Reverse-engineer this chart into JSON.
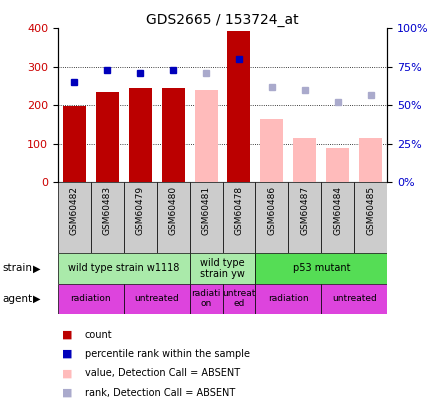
{
  "title": "GDS2665 / 153724_at",
  "samples": [
    "GSM60482",
    "GSM60483",
    "GSM60479",
    "GSM60480",
    "GSM60481",
    "GSM60478",
    "GSM60486",
    "GSM60487",
    "GSM60484",
    "GSM60485"
  ],
  "bar_values": [
    197,
    235,
    244,
    246,
    null,
    392,
    null,
    null,
    null,
    null
  ],
  "bar_color_present": "#bb0000",
  "bar_values_absent": [
    null,
    null,
    null,
    null,
    240,
    null,
    165,
    115,
    90,
    115
  ],
  "bar_color_absent": "#ffbbbb",
  "rank_present": [
    65,
    73,
    71,
    73,
    null,
    80,
    null,
    null,
    null,
    null
  ],
  "rank_color_present": "#0000bb",
  "rank_absent": [
    null,
    null,
    null,
    null,
    71,
    null,
    62,
    60,
    52,
    57
  ],
  "rank_color_absent": "#aaaacc",
  "ylim_left": [
    0,
    400
  ],
  "ylim_right": [
    0,
    100
  ],
  "yticks_left": [
    0,
    100,
    200,
    300,
    400
  ],
  "yticks_right": [
    0,
    25,
    50,
    75,
    100
  ],
  "ytick_labels_right": [
    "0%",
    "25%",
    "50%",
    "75%",
    "100%"
  ],
  "strain_groups": [
    {
      "label": "wild type strain w1118",
      "start": 0,
      "end": 4,
      "color": "#aaeaaa"
    },
    {
      "label": "wild type\nstrain yw",
      "start": 4,
      "end": 6,
      "color": "#aaeaaa"
    },
    {
      "label": "p53 mutant",
      "start": 6,
      "end": 10,
      "color": "#55dd55"
    }
  ],
  "agent_groups": [
    {
      "label": "radiation",
      "start": 0,
      "end": 2,
      "color": "#dd44dd"
    },
    {
      "label": "untreated",
      "start": 2,
      "end": 4,
      "color": "#dd44dd"
    },
    {
      "label": "radiati-\non",
      "start": 4,
      "end": 5,
      "color": "#dd44dd"
    },
    {
      "label": "untreat-\ned",
      "start": 5,
      "end": 6,
      "color": "#dd44dd"
    },
    {
      "label": "radiation",
      "start": 6,
      "end": 8,
      "color": "#dd44dd"
    },
    {
      "label": "untreated",
      "start": 8,
      "end": 10,
      "color": "#dd44dd"
    }
  ],
  "legend_items": [
    {
      "label": "count",
      "color": "#bb0000"
    },
    {
      "label": "percentile rank within the sample",
      "color": "#0000bb"
    },
    {
      "label": "value, Detection Call = ABSENT",
      "color": "#ffbbbb"
    },
    {
      "label": "rank, Detection Call = ABSENT",
      "color": "#aaaacc"
    }
  ],
  "left_axis_color": "#cc0000",
  "right_axis_color": "#0000cc",
  "fig_width": 4.45,
  "fig_height": 4.05,
  "dpi": 100
}
